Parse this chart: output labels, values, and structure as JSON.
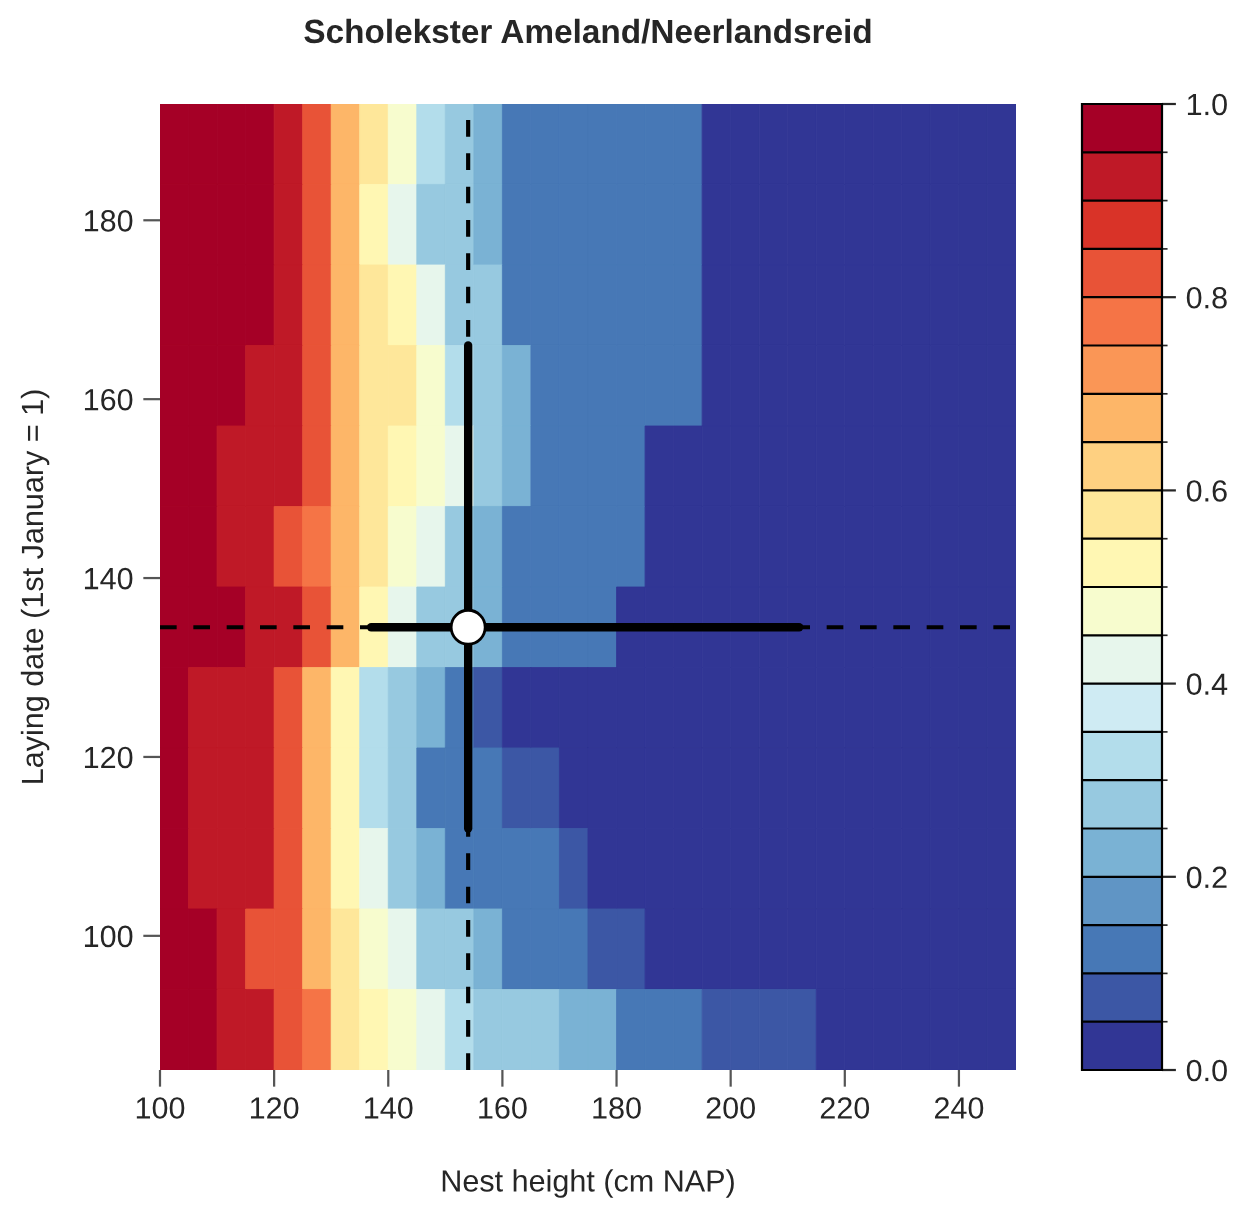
{
  "chart_data": {
    "type": "heatmap",
    "title": "Scholekster Ameland/Neerlandsreid",
    "xlabel": "Nest height (cm NAP)",
    "ylabel": "Laying date (1st January = 1)",
    "x": [
      102.5,
      107.5,
      112.5,
      117.5,
      122.5,
      127.5,
      132.5,
      137.5,
      142.5,
      147.5,
      152.5,
      157.5,
      162.5,
      167.5,
      172.5,
      177.5,
      182.5,
      187.5,
      192.5,
      197.5,
      202.5,
      207.5,
      212.5,
      217.5,
      222.5,
      227.5,
      232.5,
      237.5,
      242.5,
      247.5
    ],
    "y": [
      188.5,
      179.5,
      170.5,
      161.5,
      152.5,
      143.5,
      134.5,
      125.5,
      116.5,
      107.5,
      98.5,
      89.5
    ],
    "cells": [
      [
        1,
        1,
        1,
        1,
        0.95,
        0.85,
        0.7,
        0.55,
        0.45,
        0.35,
        0.25,
        0.2,
        0.15,
        0.15,
        0.15,
        0.15,
        0.1,
        0.1,
        0.1,
        0,
        0,
        0,
        0,
        0,
        0,
        0,
        0,
        0,
        0,
        0
      ],
      [
        1,
        1,
        1,
        1,
        0.95,
        0.85,
        0.65,
        0.5,
        0.4,
        0.3,
        0.25,
        0.2,
        0.15,
        0.15,
        0.15,
        0.15,
        0.1,
        0.1,
        0.1,
        0,
        0,
        0,
        0,
        0,
        0,
        0,
        0,
        0,
        0,
        0
      ],
      [
        1,
        1,
        1,
        1,
        0.9,
        0.8,
        0.7,
        0.6,
        0.5,
        0.4,
        0.3,
        0.25,
        0.15,
        0.15,
        0.15,
        0.15,
        0.1,
        0.1,
        0.1,
        0,
        0,
        0,
        0,
        0,
        0,
        0,
        0,
        0,
        0,
        0
      ],
      [
        1,
        1,
        1,
        0.95,
        0.9,
        0.8,
        0.7,
        0.6,
        0.55,
        0.45,
        0.35,
        0.3,
        0.2,
        0.15,
        0.15,
        0.15,
        0.1,
        0.1,
        0.1,
        0,
        0,
        0,
        0,
        0,
        0,
        0,
        0,
        0,
        0,
        0
      ],
      [
        1,
        1,
        0.95,
        0.95,
        0.9,
        0.8,
        0.7,
        0.6,
        0.5,
        0.45,
        0.4,
        0.3,
        0.2,
        0.15,
        0.15,
        0.15,
        0.1,
        0,
        0,
        0,
        0,
        0,
        0,
        0,
        0,
        0,
        0,
        0,
        0,
        0
      ],
      [
        1,
        1,
        0.95,
        0.9,
        0.85,
        0.75,
        0.65,
        0.55,
        0.45,
        0.4,
        0.3,
        0.2,
        0.15,
        0.15,
        0.15,
        0.1,
        0.1,
        0,
        0,
        0,
        0,
        0,
        0,
        0,
        0,
        0,
        0,
        0,
        0,
        0
      ],
      [
        1,
        1,
        1,
        0.95,
        0.9,
        0.8,
        0.65,
        0.5,
        0.4,
        0.3,
        0.25,
        0.2,
        0.1,
        0.1,
        0.1,
        0.1,
        0,
        0,
        0,
        0,
        0,
        0,
        0,
        0,
        0,
        0,
        0,
        0,
        0,
        0
      ],
      [
        1,
        0.95,
        0.95,
        0.9,
        0.85,
        0.7,
        0.5,
        0.35,
        0.3,
        0.2,
        0.1,
        0.05,
        0,
        0,
        0,
        0,
        0,
        0,
        0,
        0,
        0,
        0,
        0,
        0,
        0,
        0,
        0,
        0,
        0,
        0
      ],
      [
        1,
        0.95,
        0.95,
        0.9,
        0.8,
        0.65,
        0.5,
        0.35,
        0.25,
        0.15,
        0.1,
        0.1,
        0.05,
        0.05,
        0,
        0,
        0,
        0,
        0,
        0,
        0,
        0,
        0,
        0,
        0,
        0,
        0,
        0,
        0,
        0
      ],
      [
        1,
        0.95,
        0.95,
        0.9,
        0.8,
        0.65,
        0.5,
        0.4,
        0.3,
        0.2,
        0.15,
        0.15,
        0.1,
        0.1,
        0.05,
        0,
        0,
        0,
        0,
        0,
        0,
        0,
        0,
        0,
        0,
        0,
        0,
        0,
        0,
        0
      ],
      [
        1,
        1,
        0.95,
        0.85,
        0.8,
        0.7,
        0.6,
        0.45,
        0.4,
        0.3,
        0.25,
        0.2,
        0.15,
        0.1,
        0.1,
        0.05,
        0.05,
        0,
        0,
        0,
        0,
        0,
        0,
        0,
        0,
        0,
        0,
        0,
        0,
        0
      ],
      [
        1,
        1,
        0.95,
        0.9,
        0.85,
        0.75,
        0.6,
        0.5,
        0.45,
        0.4,
        0.35,
        0.3,
        0.3,
        0.25,
        0.2,
        0.2,
        0.15,
        0.1,
        0.1,
        0.05,
        0.05,
        0.05,
        0.05,
        0,
        0,
        0,
        0,
        0,
        0,
        0
      ]
    ],
    "clim": [
      0,
      1
    ],
    "cticks": [
      {
        "value": 0,
        "label": "0.0"
      },
      0.2,
      0.4,
      0.6,
      0.8,
      {
        "value": 1,
        "label": "1.0"
      }
    ],
    "xlim": [
      100,
      250
    ],
    "xticks": [
      100,
      120,
      140,
      160,
      180,
      200,
      220,
      240
    ],
    "ylim": [
      85,
      193
    ],
    "yticks": [
      100,
      120,
      140,
      160,
      180
    ],
    "series": [
      {
        "type": "scatter",
        "x": [
          154
        ],
        "values": [
          134.5
        ],
        "xerrors": [
          [
            137,
            212
          ]
        ],
        "errors": [
          [
            112,
            166
          ]
        ],
        "color": "#ffffff"
      }
    ],
    "marker": "circle",
    "ref_lines": [
      {
        "axis": "x",
        "value": 154,
        "line_style": "dashed"
      },
      {
        "axis": "y",
        "value": 134.5,
        "line_style": "dashed"
      }
    ]
  }
}
